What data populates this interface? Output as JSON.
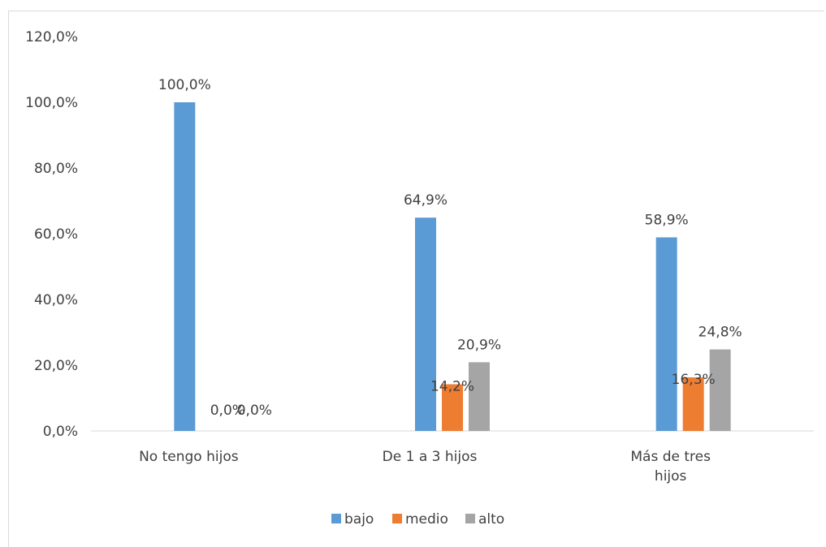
{
  "chart_data": {
    "type": "bar",
    "categories": [
      "No tengo hijos",
      "De 1 a 3 hijos",
      "Más de tres hijos"
    ],
    "category_label_lines": [
      [
        "No tengo hijos"
      ],
      [
        "De 1 a 3 hijos"
      ],
      [
        "Más de tres",
        "hijos"
      ]
    ],
    "series": [
      {
        "name": "bajo",
        "color": "#5b9bd5",
        "values": [
          100.0,
          64.9,
          58.9
        ],
        "labels": [
          "100,0%",
          "64,9%",
          "58,9%"
        ]
      },
      {
        "name": "medio",
        "color": "#ed7d31",
        "values": [
          0.0,
          14.2,
          16.3
        ],
        "labels": [
          "0,0%",
          "14,2%",
          "16,3%"
        ]
      },
      {
        "name": "alto",
        "color": "#a5a5a5",
        "values": [
          0.0,
          20.9,
          24.8
        ],
        "labels": [
          "0,0%",
          "20,9%",
          "24,8%"
        ]
      }
    ],
    "ylim": [
      0,
      120
    ],
    "yticks": [
      0,
      20,
      40,
      60,
      80,
      100,
      120
    ],
    "ytick_labels": [
      "0,0%",
      "20,0%",
      "40,0%",
      "60,0%",
      "80,0%",
      "100,0%",
      "120,0%"
    ],
    "grid": false,
    "legend_position": "bottom"
  }
}
